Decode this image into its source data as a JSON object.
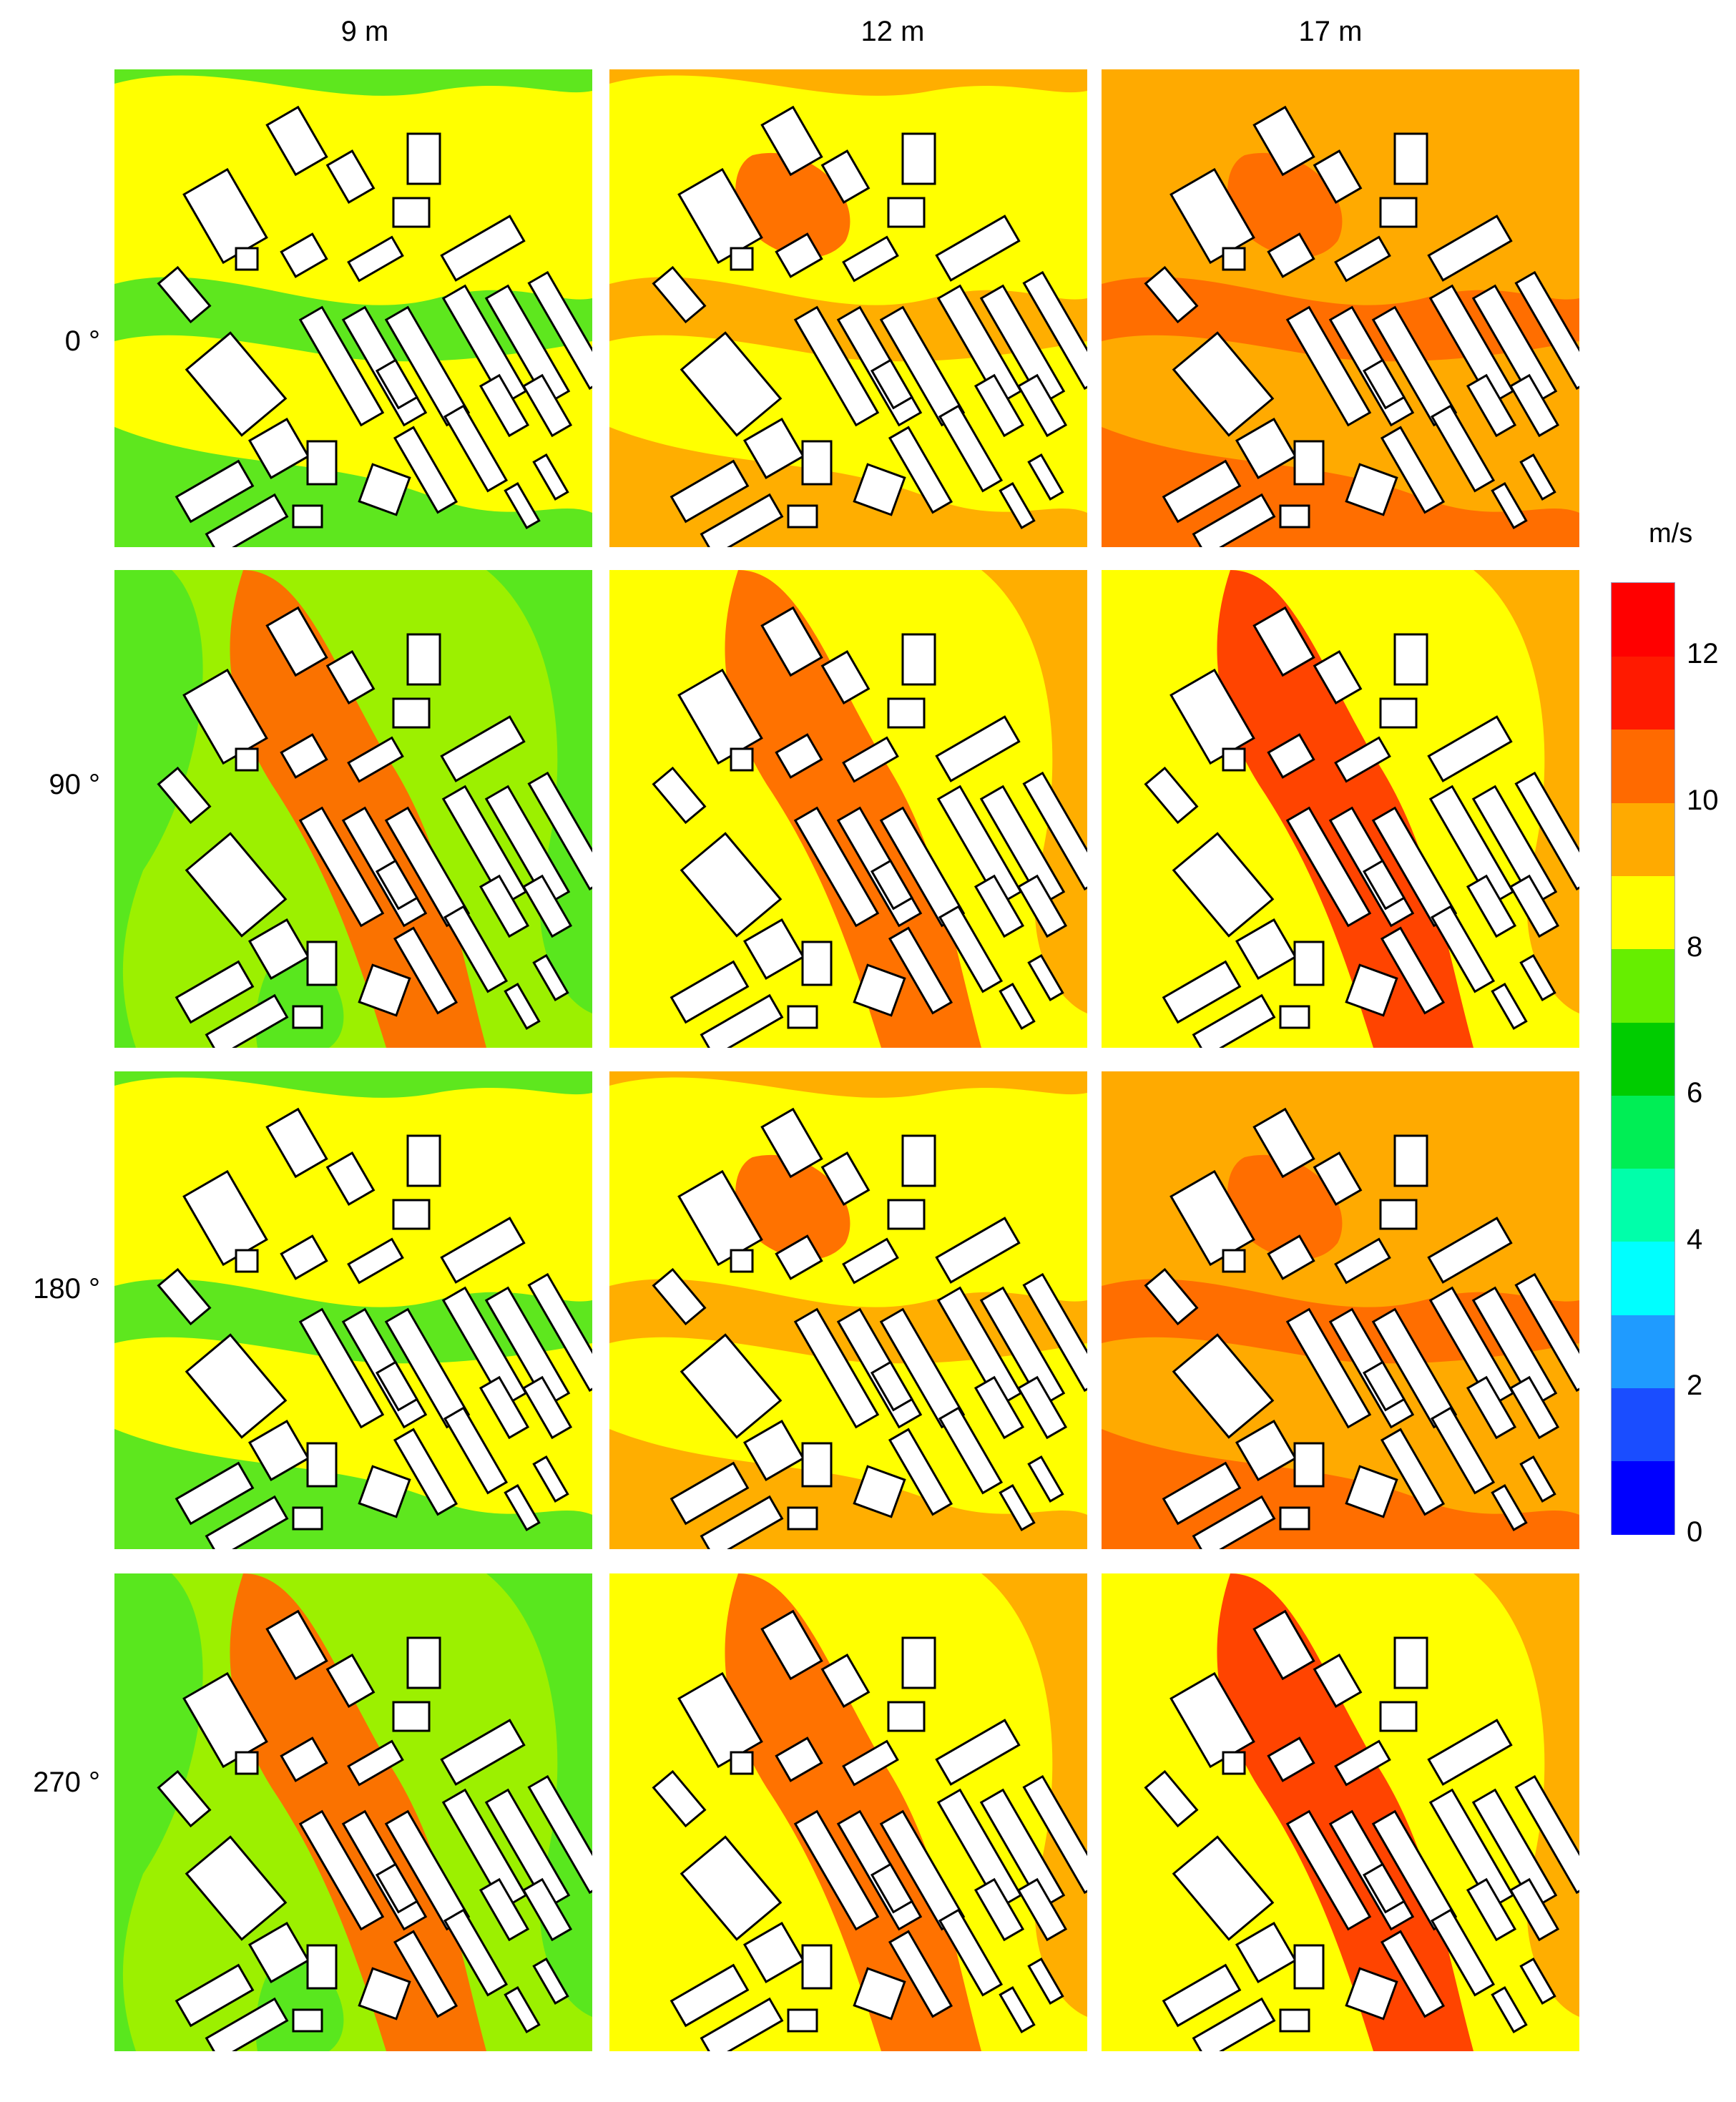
{
  "column_labels": [
    "9 m",
    "12 m",
    "17 m"
  ],
  "row_labels": [
    "0 °",
    "90 °",
    "180 °",
    "270 °"
  ],
  "legend": {
    "unit": "m/s",
    "ticks": [
      "0",
      "2",
      "4",
      "6",
      "8",
      "10",
      "12"
    ],
    "colors": [
      "#0000ff",
      "#1a4dff",
      "#1f9bff",
      "#00ffff",
      "#00ffaa",
      "#00ee55",
      "#00cc00",
      "#66ee00",
      "#ffff00",
      "#ffaa00",
      "#ff6a00",
      "#ff1a00",
      "#ff0000"
    ]
  },
  "palette": {
    "green": "#55e620",
    "light_green": "#9cf000",
    "yellow": "#ffff00",
    "orange": "#ffaa00",
    "red_orange": "#ff6a00",
    "red": "#ff3a00"
  },
  "panels": [
    {
      "row": "0 °",
      "col": "9 m",
      "base": "yellow",
      "band": "green"
    },
    {
      "row": "0 °",
      "col": "12 m",
      "base": "yellow",
      "band": "orange"
    },
    {
      "row": "0 °",
      "col": "17 m",
      "base": "orange",
      "band": "red_orange"
    },
    {
      "row": "90 °",
      "col": "9 m",
      "base": "light_green",
      "band": "red_orange"
    },
    {
      "row": "90 °",
      "col": "12 m",
      "base": "yellow",
      "band": "red_orange"
    },
    {
      "row": "90 °",
      "col": "17 m",
      "base": "yellow",
      "band": "red"
    },
    {
      "row": "180 °",
      "col": "9 m",
      "base": "yellow",
      "band": "green"
    },
    {
      "row": "180 °",
      "col": "12 m",
      "base": "yellow",
      "band": "orange"
    },
    {
      "row": "180 °",
      "col": "17 m",
      "base": "orange",
      "band": "red_orange"
    },
    {
      "row": "270 °",
      "col": "9 m",
      "base": "light_green",
      "band": "red_orange"
    },
    {
      "row": "270 °",
      "col": "12 m",
      "base": "yellow",
      "band": "red_orange"
    },
    {
      "row": "270 °",
      "col": "17 m",
      "base": "yellow",
      "band": "red"
    }
  ]
}
